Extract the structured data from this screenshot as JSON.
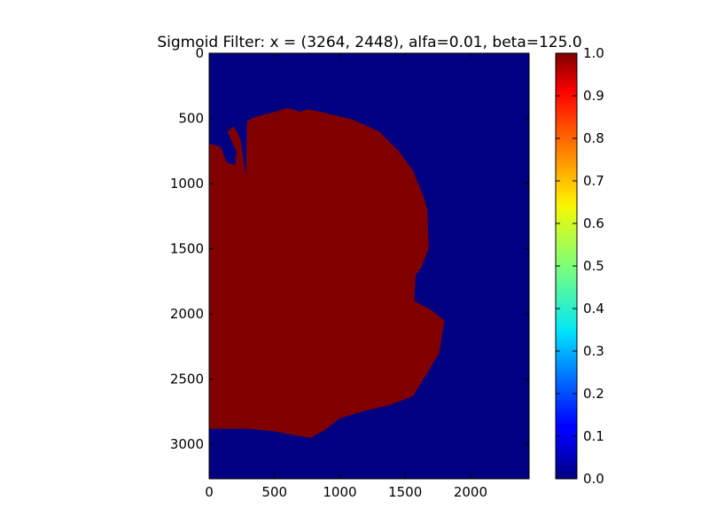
{
  "chart_data": {
    "type": "heatmap",
    "title": "Sigmoid Filter: x = (3264, 2448), alfa=0.01, beta=125.0",
    "xlabel": "",
    "ylabel": "",
    "xlim": [
      0,
      2448
    ],
    "ylim": [
      3264,
      0
    ],
    "x_ticks": [
      "0",
      "500",
      "1000",
      "1500",
      "2000"
    ],
    "x_tick_values": [
      0,
      500,
      1000,
      1500,
      2000
    ],
    "y_ticks": [
      "0",
      "500",
      "1000",
      "1500",
      "2000",
      "2500",
      "3000"
    ],
    "y_tick_values": [
      0,
      500,
      1000,
      1500,
      2000,
      2500,
      3000
    ],
    "colormap": "jet",
    "background_value": 0.0,
    "region_value": 1.0,
    "region_boundary": [
      [
        0,
        690
      ],
      [
        90,
        720
      ],
      [
        130,
        830
      ],
      [
        200,
        860
      ],
      [
        210,
        760
      ],
      [
        140,
        600
      ],
      [
        190,
        560
      ],
      [
        240,
        660
      ],
      [
        280,
        940
      ],
      [
        290,
        520
      ],
      [
        350,
        490
      ],
      [
        500,
        450
      ],
      [
        600,
        420
      ],
      [
        700,
        450
      ],
      [
        750,
        430
      ],
      [
        900,
        460
      ],
      [
        1100,
        510
      ],
      [
        1300,
        600
      ],
      [
        1450,
        750
      ],
      [
        1560,
        900
      ],
      [
        1640,
        1100
      ],
      [
        1670,
        1200
      ],
      [
        1680,
        1500
      ],
      [
        1620,
        1650
      ],
      [
        1580,
        1700
      ],
      [
        1570,
        1900
      ],
      [
        1700,
        1970
      ],
      [
        1800,
        2050
      ],
      [
        1760,
        2300
      ],
      [
        1640,
        2500
      ],
      [
        1560,
        2630
      ],
      [
        1380,
        2700
      ],
      [
        1200,
        2740
      ],
      [
        1000,
        2800
      ],
      [
        900,
        2880
      ],
      [
        780,
        2950
      ],
      [
        650,
        2930
      ],
      [
        500,
        2900
      ],
      [
        300,
        2880
      ],
      [
        100,
        2880
      ],
      [
        0,
        2880
      ]
    ],
    "colorbar": {
      "ticks": [
        "0.0",
        "0.1",
        "0.2",
        "0.3",
        "0.4",
        "0.5",
        "0.6",
        "0.7",
        "0.8",
        "0.9",
        "1.0"
      ],
      "tick_values": [
        0,
        0.1,
        0.2,
        0.3,
        0.4,
        0.5,
        0.6,
        0.7,
        0.8,
        0.9,
        1.0
      ],
      "range": [
        0,
        1
      ]
    },
    "colors": {
      "low": "#000080",
      "high": "#800000"
    }
  }
}
